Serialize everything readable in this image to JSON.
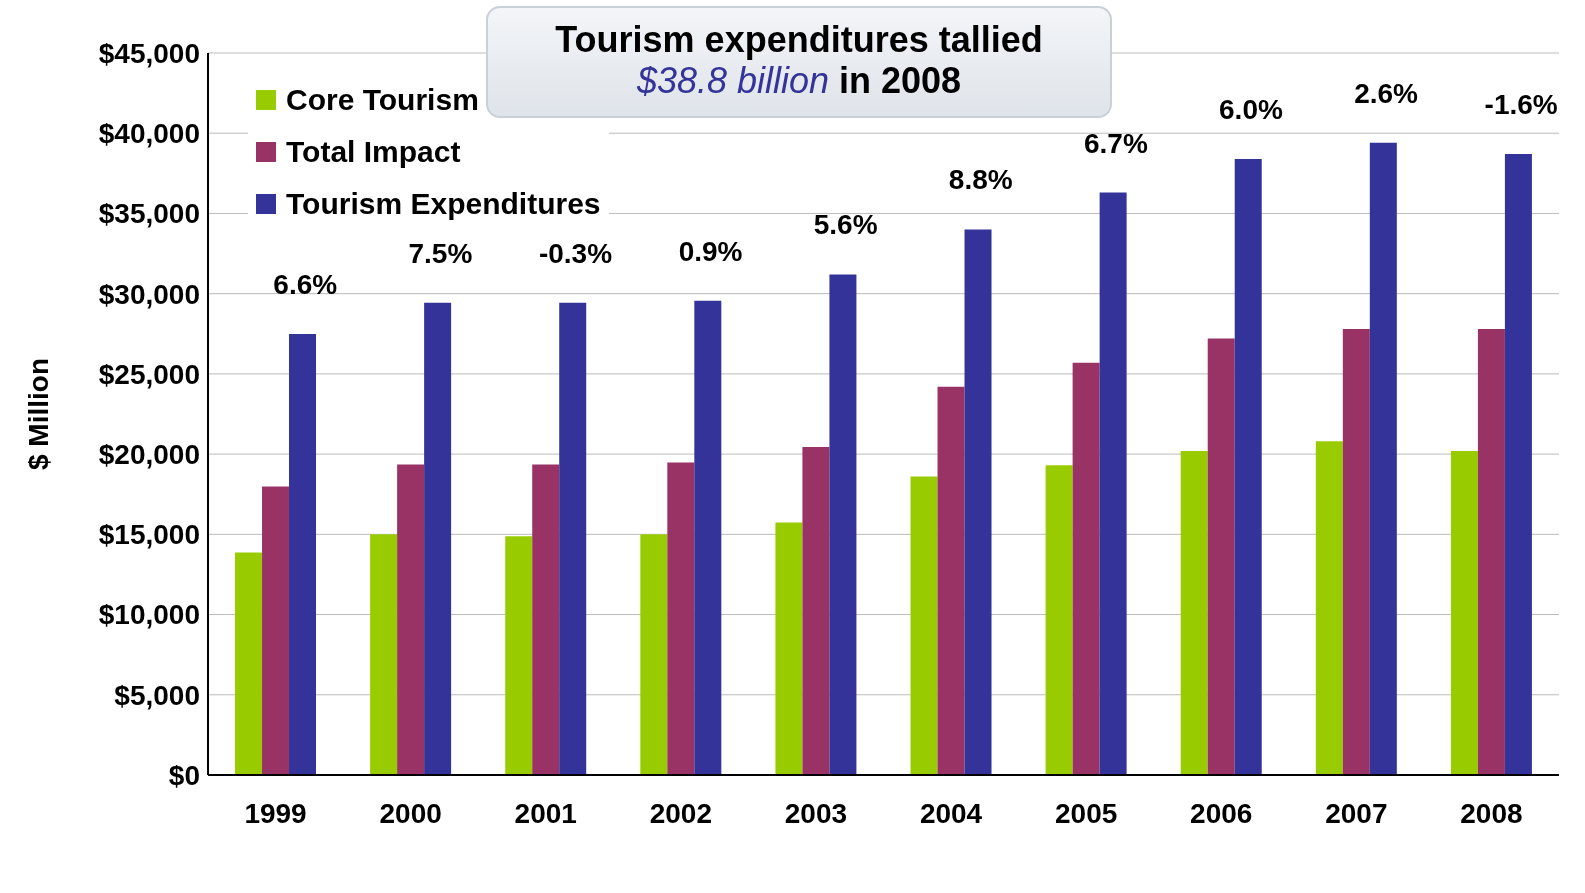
{
  "chart_data": {
    "type": "bar",
    "title": "Tourism expenditures tallied",
    "subtitle": "$38.8 billion in 2008",
    "ylabel": "$ Million",
    "categories": [
      "1999",
      "2000",
      "2001",
      "2002",
      "2003",
      "2004",
      "2005",
      "2006",
      "2007",
      "2008"
    ],
    "series": [
      {
        "name": "Core Tourism",
        "color": "#99cc00",
        "values": [
          13860,
          15000,
          14880,
          15000,
          15740,
          18600,
          19300,
          20200,
          20800,
          20200
        ]
      },
      {
        "name": "Total Impact",
        "color": "#993366",
        "values": [
          17980,
          19360,
          19360,
          19470,
          20440,
          24200,
          25700,
          27200,
          27800,
          27800
        ]
      },
      {
        "name": "Tourism Expenditures",
        "color": "#333399",
        "values": [
          27490,
          29440,
          29440,
          29560,
          31200,
          34000,
          36300,
          38400,
          39400,
          38700
        ]
      }
    ],
    "ylim": [
      0,
      45000
    ],
    "yticks": [
      {
        "value": 0,
        "label": "$0"
      },
      {
        "value": 5000,
        "label": "$5,000"
      },
      {
        "value": 10000,
        "label": "$10,000"
      },
      {
        "value": 15000,
        "label": "$15,000"
      },
      {
        "value": 20000,
        "label": "$20,000"
      },
      {
        "value": 25000,
        "label": "$25,000"
      },
      {
        "value": 30000,
        "label": "$30,000"
      },
      {
        "value": 35000,
        "label": "$35,000"
      },
      {
        "value": 40000,
        "label": "$40,000"
      },
      {
        "value": 45000,
        "label": "$45,000"
      }
    ],
    "grid": "y",
    "legend": "top left",
    "annotations": [
      "6.6%",
      "7.5%",
      "-0.3%",
      "0.9%",
      "5.6%",
      "8.8%",
      "6.7%",
      "6.0%",
      "2.6%",
      "-1.6%"
    ]
  }
}
